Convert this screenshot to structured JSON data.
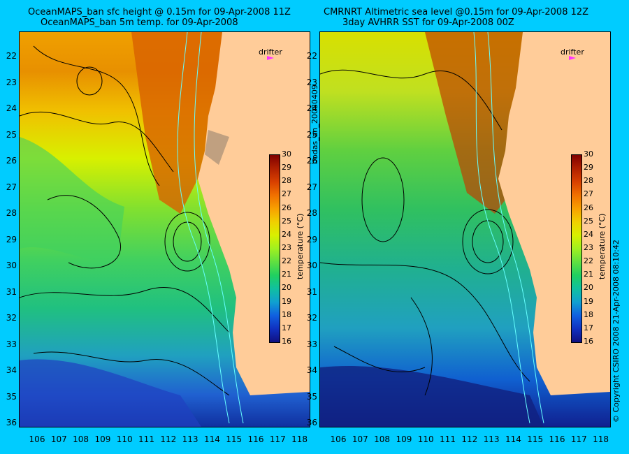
{
  "left_panel": {
    "title_line1": "OceanMAPS_ban sfc height @ 0.15m for 09-Apr-2008 11Z",
    "title_line2": "OceanMAPS_ban 5m temp. for 09-Apr-2008",
    "drifter_label": "drifter",
    "colorbar_label": "temperature (°C)"
  },
  "right_panel": {
    "title_line1": "CMRNRT Altimetric sea level  @0.15m  for 09-Apr-2008 12Z",
    "title_line2": "3day AVHRR SST for 09-Apr-2008 00Z",
    "drifter_label": "drifter",
    "colorbar_label": "temperature (°C)"
  },
  "middle_vertical_text": "bodas_an_20080409",
  "right_vertical_text": "© Copyright CSIRO 2008     21-Apr-2008 08:10:42",
  "latitude_labels": [
    "22",
    "23",
    "24",
    "25",
    "26",
    "27",
    "28",
    "29",
    "30",
    "31",
    "32",
    "33",
    "34",
    "35",
    "36"
  ],
  "longitude_labels": [
    "106",
    "107",
    "108",
    "109",
    "110",
    "111",
    "112",
    "113",
    "114",
    "115",
    "116",
    "117",
    "118"
  ],
  "colorbar_ticks": [
    "30",
    "29",
    "28",
    "27",
    "26",
    "25",
    "24",
    "23",
    "22",
    "21",
    "20",
    "19",
    "18",
    "17",
    "16"
  ],
  "colors": {
    "background": "#00ccff",
    "land": "#ffcc99",
    "contour": "#000000",
    "bathymetry": "#66ffff",
    "drifter": "#ff33ff"
  },
  "colorbar_colors": [
    "#800000",
    "#b02000",
    "#d84000",
    "#f07000",
    "#f8a000",
    "#f0d000",
    "#d8f000",
    "#a0f020",
    "#60e040",
    "#20d060",
    "#10c0a0",
    "#10a0d0",
    "#1060e0",
    "#1030c0",
    "#101080"
  ]
}
